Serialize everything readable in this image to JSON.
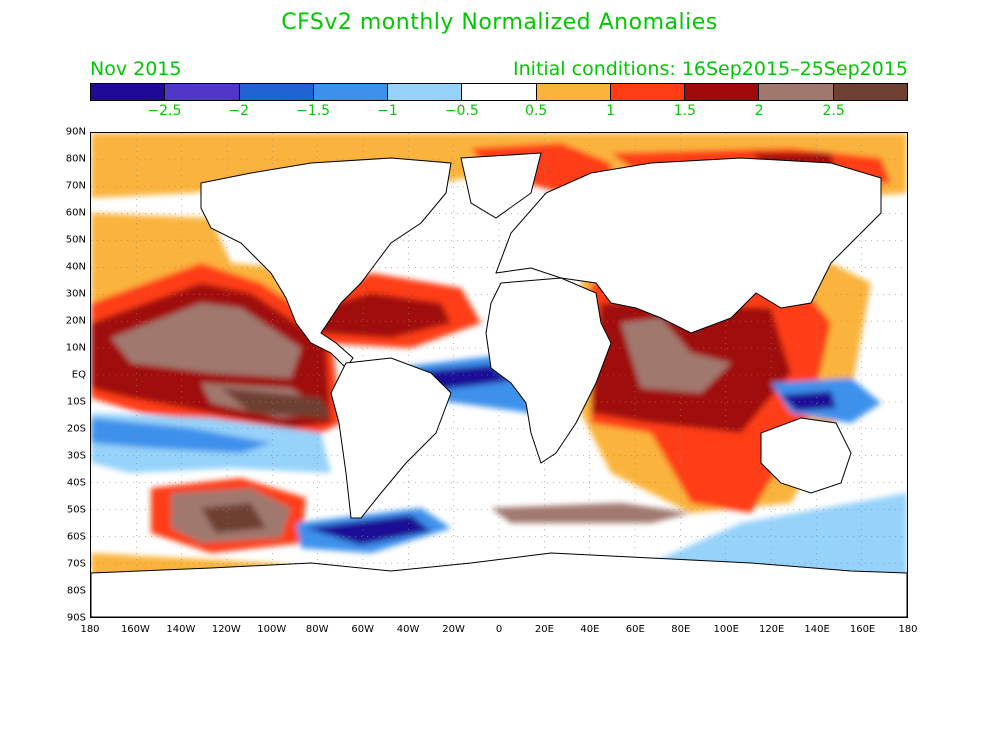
{
  "title": "CFSv2 monthly Normalized Anomalies",
  "valid_month": "Nov 2015",
  "initial_conditions": "Initial conditions: 16Sep2015–25Sep2015",
  "colorbar": {
    "colors": [
      "#1e0a96",
      "#5037c8",
      "#1e64d2",
      "#3c91eb",
      "#96d2fa",
      "#ffffff",
      "#fab43c",
      "#ff3c14",
      "#a00a0a",
      "#a0786e",
      "#6e4132"
    ],
    "labels": [
      "−2.5",
      "−2",
      "−1.5",
      "−1",
      "−0.5",
      "0.5",
      "1",
      "1.5",
      "2",
      "2.5"
    ]
  },
  "lat_labels": [
    "90N",
    "80N",
    "70N",
    "60N",
    "50N",
    "40N",
    "30N",
    "20N",
    "10N",
    "EQ",
    "10S",
    "20S",
    "30S",
    "40S",
    "50S",
    "60S",
    "70S",
    "80S",
    "90S"
  ],
  "lon_labels": [
    "180",
    "160W",
    "140W",
    "120W",
    "100W",
    "80W",
    "60W",
    "40W",
    "20W",
    "0",
    "20E",
    "40E",
    "60E",
    "80E",
    "100E",
    "120E",
    "140E",
    "160E",
    "180"
  ]
}
